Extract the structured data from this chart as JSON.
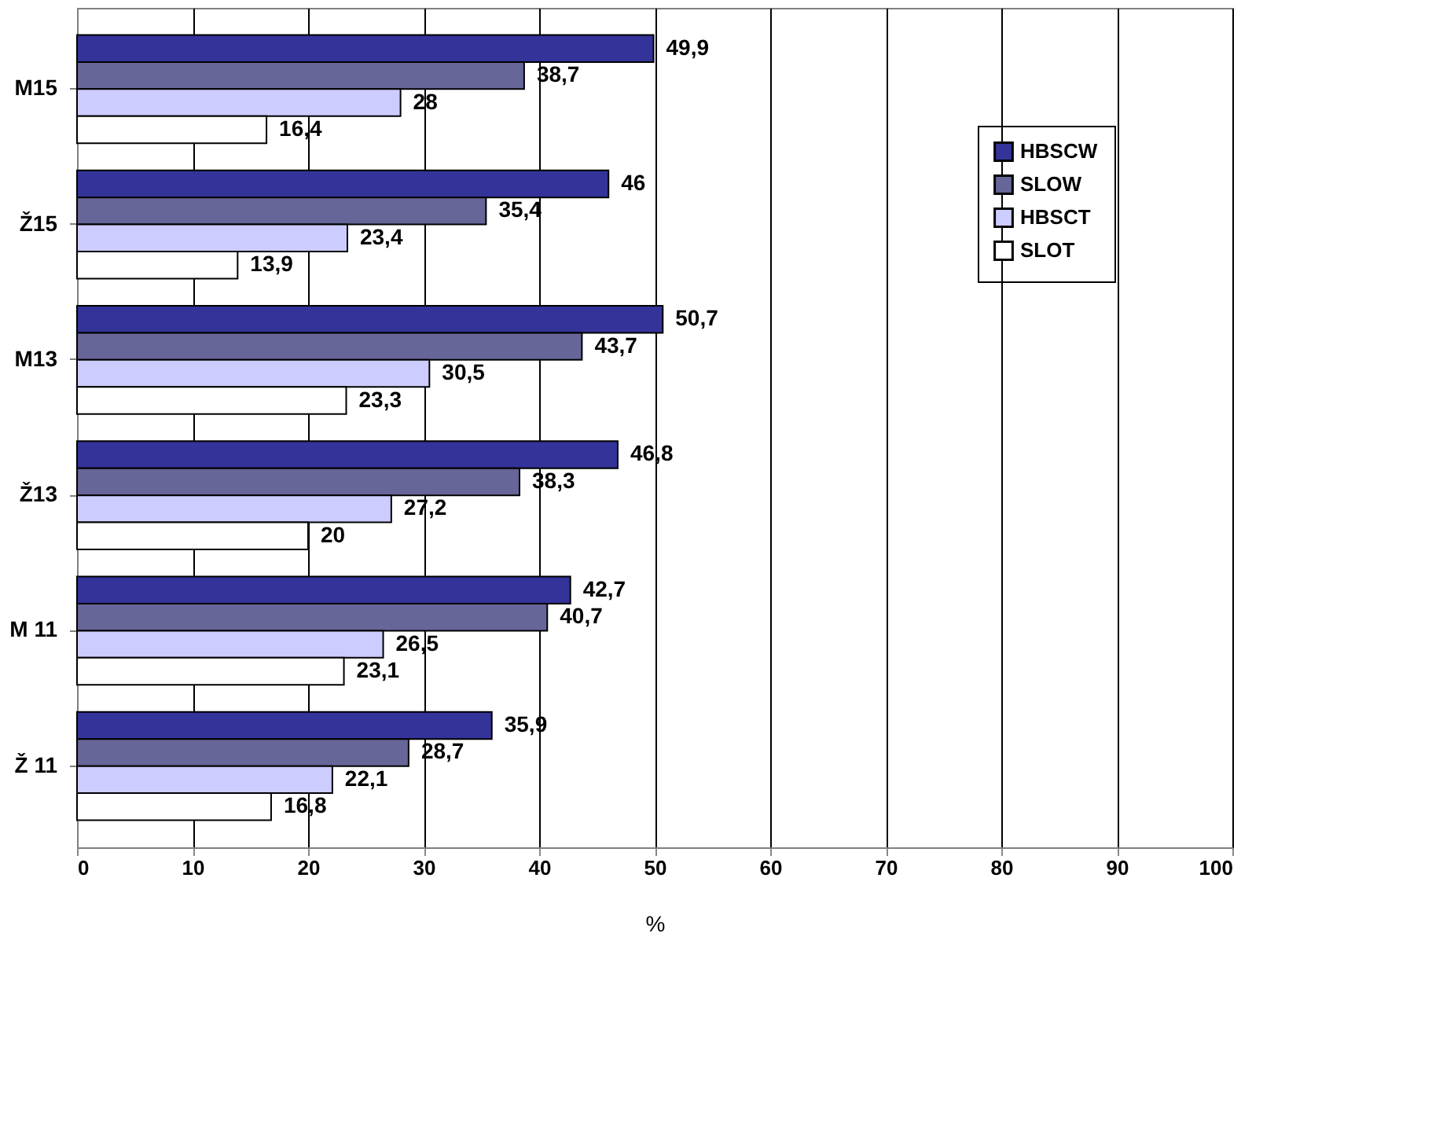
{
  "chart_data": {
    "type": "bar",
    "orientation": "horizontal",
    "xlabel": "%",
    "categories": [
      "M15",
      "Ž15",
      "M13",
      "Ž13",
      "M 11",
      "Ž 11"
    ],
    "series": [
      {
        "name": "HBSCW",
        "color": "#333399",
        "values": [
          49.9,
          46,
          50.7,
          46.8,
          42.7,
          35.9
        ],
        "value_labels": [
          "49,9",
          "46",
          "50,7",
          "46,8",
          "42,7",
          "35,9"
        ]
      },
      {
        "name": "SLOW",
        "color": "#666699",
        "values": [
          38.7,
          35.4,
          43.7,
          38.3,
          40.7,
          28.7
        ],
        "value_labels": [
          "38,7",
          "35,4",
          "43,7",
          "38,3",
          "40,7",
          "28,7"
        ]
      },
      {
        "name": "HBSCT",
        "color": "#ccccff",
        "values": [
          28,
          23.4,
          30.5,
          27.2,
          26.5,
          22.1
        ],
        "value_labels": [
          "28",
          "23,4",
          "30,5",
          "27,2",
          "26,5",
          "22,1"
        ]
      },
      {
        "name": "SLOT",
        "color": "#ffffff",
        "values": [
          16.4,
          13.9,
          23.3,
          20,
          23.1,
          16.8
        ],
        "value_labels": [
          "16,4",
          "13,9",
          "23,3",
          "20",
          "23,1",
          "16,8"
        ]
      }
    ],
    "xlim": [
      0,
      100
    ],
    "xticks": [
      0,
      10,
      20,
      30,
      40,
      50,
      60,
      70,
      80,
      90,
      100
    ],
    "grid": "x",
    "legend": "top right"
  }
}
